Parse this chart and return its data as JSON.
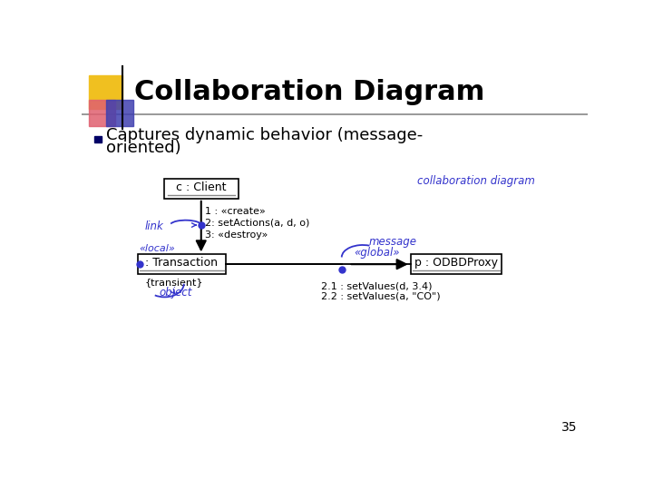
{
  "title": "Collaboration Diagram",
  "bullet_text_line1": "Captures dynamic behavior (message-",
  "bullet_text_line2": "oriented)",
  "slide_number": "35",
  "bg_color": "#ffffff",
  "title_color": "#000000",
  "bullet_color": "#000000",
  "blue_color": "#3333cc",
  "collab_label": "collaboration diagram",
  "link_label": "link",
  "local_label": "«local»",
  "message_label": "message",
  "global_label": "«global»",
  "object_label": "object",
  "transient_label": "{transient}",
  "client_box_label": "c : Client",
  "transaction_box_label": ": Transaction",
  "proxy_box_label": "p : ODBDProxy",
  "msg1": "1 : «create»",
  "msg2": "2: setActions(a, d, o)",
  "msg3": "3: «destroy»",
  "msg4": "2.1 : setValues(d, 3.4)",
  "msg5": "2.2 : setValues(a, \"CO\")"
}
